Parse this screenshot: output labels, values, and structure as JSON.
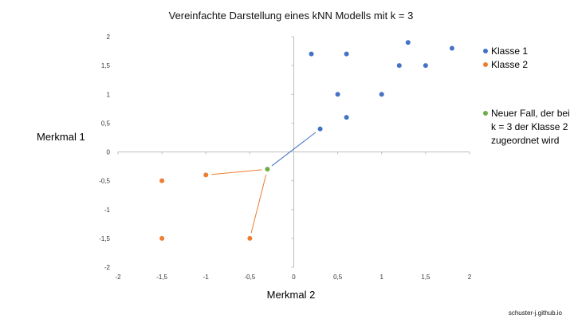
{
  "chart_data": {
    "type": "scatter",
    "title": "Vereinfachte Darstellung eines kNN Modells mit k = 3",
    "xlabel": "Merkmal 2",
    "ylabel": "Merkmal 1",
    "xlim": [
      -2,
      2
    ],
    "ylim": [
      -2,
      2
    ],
    "xticks": [
      "-2",
      "-1,5",
      "-1",
      "-0,5",
      "0",
      "0,5",
      "1",
      "1,5",
      "2"
    ],
    "yticks": [
      "2",
      "1,5",
      "1",
      "0,5",
      "0",
      "-0,5",
      "-1",
      "-1,5",
      "-2"
    ],
    "grid": false,
    "legend_position": "right",
    "series": [
      {
        "name": "Klasse 1",
        "color": "#4472C4",
        "points": [
          {
            "x": 0.2,
            "y": 1.7
          },
          {
            "x": 0.6,
            "y": 1.7
          },
          {
            "x": 1.3,
            "y": 1.9
          },
          {
            "x": 1.8,
            "y": 1.8
          },
          {
            "x": 1.2,
            "y": 1.5
          },
          {
            "x": 1.5,
            "y": 1.5
          },
          {
            "x": 0.5,
            "y": 1.0
          },
          {
            "x": 1.0,
            "y": 1.0
          },
          {
            "x": 0.6,
            "y": 0.6
          },
          {
            "x": 0.3,
            "y": 0.4
          }
        ]
      },
      {
        "name": "Klasse 2",
        "color": "#ED7D31",
        "points": [
          {
            "x": -1.5,
            "y": -0.5
          },
          {
            "x": -1.0,
            "y": -0.4
          },
          {
            "x": -1.5,
            "y": -1.5
          },
          {
            "x": -0.5,
            "y": -1.5
          }
        ]
      },
      {
        "name": "Neuer Fall, der bei k = 3 der Klasse 2 zugeordnet wird",
        "color": "#70AD47",
        "points": [
          {
            "x": -0.3,
            "y": -0.3
          }
        ]
      }
    ],
    "neighbor_lines": [
      {
        "from": [
          -0.3,
          -0.3
        ],
        "to": [
          0.3,
          0.4
        ],
        "color": "#4472C4"
      },
      {
        "from": [
          -0.3,
          -0.3
        ],
        "to": [
          -1.0,
          -0.4
        ],
        "color": "#ED7D31"
      },
      {
        "from": [
          -0.3,
          -0.3
        ],
        "to": [
          -0.5,
          -1.5
        ],
        "color": "#ED7D31"
      }
    ]
  },
  "footer": "schuster-j.github.io"
}
